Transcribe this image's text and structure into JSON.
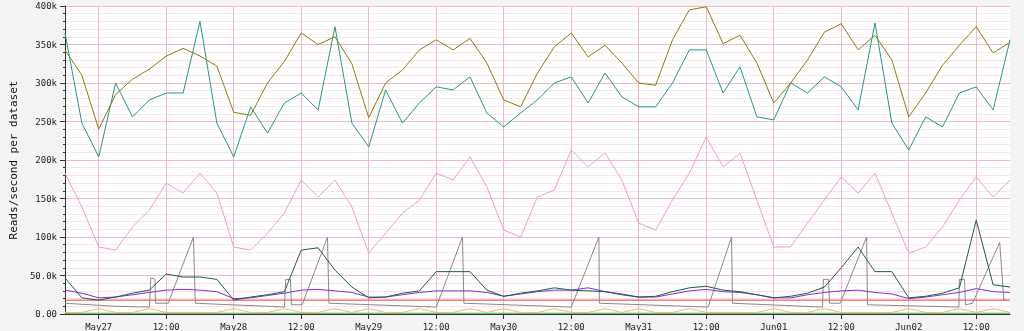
{
  "chart_data": {
    "type": "line",
    "ylabel": "Reads/second per dataset",
    "x": [
      "--05-26T18:00",
      "--05-26T21:00",
      "--05-27T00:00",
      "--05-27T03:00",
      "--05-27T06:00",
      "--05-27T09:00",
      "--05-27T12:00",
      "--05-27T15:00",
      "--05-27T18:00",
      "--05-27T21:00",
      "--05-28T00:00",
      "--05-28T03:00",
      "--05-28T06:00",
      "--05-28T09:00",
      "--05-28T12:00",
      "--05-28T15:00",
      "--05-28T18:00",
      "--05-28T21:00",
      "--05-29T00:00",
      "--05-29T03:00",
      "--05-29T06:00",
      "--05-29T09:00",
      "--05-29T12:00",
      "--05-29T15:00",
      "--05-29T18:00",
      "--05-29T21:00",
      "--05-30T00:00",
      "--05-30T03:00",
      "--05-30T06:00",
      "--05-30T09:00",
      "--05-30T12:00",
      "--05-30T15:00",
      "--05-30T18:00",
      "--05-30T21:00",
      "--05-31T00:00",
      "--05-31T03:00",
      "--05-31T06:00",
      "--05-31T09:00",
      "--05-31T12:00",
      "--05-31T15:00",
      "--05-31T18:00",
      "--05-31T21:00",
      "--06-01T00:00",
      "--06-01T03:00",
      "--06-01T06:00",
      "--06-01T09:00",
      "--06-01T12:00",
      "--06-01T15:00",
      "--06-01T18:00",
      "--06-01T21:00",
      "--06-02T00:00",
      "--06-02T03:00",
      "--06-02T06:00",
      "--06-02T09:00",
      "--06-02T12:00",
      "--06-02T15:00",
      "--06-02T18:00"
    ],
    "series": [
      {
        "color": "#8c7d0a",
        "values": [
          343000,
          310000,
          240000,
          285000,
          305000,
          318000,
          335000,
          345000,
          335000,
          322000,
          262000,
          258000,
          300000,
          328000,
          365000,
          350000,
          360000,
          325000,
          255000,
          300000,
          317000,
          343000,
          356000,
          343000,
          358000,
          326000,
          278000,
          269000,
          313000,
          347000,
          365000,
          334000,
          349000,
          326000,
          300000,
          297000,
          356000,
          395000,
          399000,
          351000,
          362000,
          326000,
          274000,
          300000,
          330000,
          366000,
          377000,
          343000,
          362000,
          330000,
          256000,
          287000,
          323000,
          349000,
          373000,
          339000,
          353000
        ]
      },
      {
        "color": "#1a9c8c",
        "values": [
          365000,
          248000,
          204000,
          300000,
          256000,
          278000,
          287000,
          287000,
          380000,
          248000,
          204000,
          269000,
          235000,
          274000,
          287000,
          265000,
          373000,
          248000,
          217000,
          291000,
          248000,
          274000,
          295000,
          291000,
          308000,
          261000,
          243000,
          261000,
          278000,
          300000,
          308000,
          274000,
          313000,
          282000,
          269000,
          269000,
          300000,
          343000,
          343000,
          287000,
          321000,
          256000,
          252000,
          300000,
          287000,
          308000,
          295000,
          265000,
          378000,
          248000,
          213000,
          256000,
          243000,
          287000,
          295000,
          265000,
          356000
        ]
      },
      {
        "color": "#f2a0b5",
        "values": [
          183000,
          139000,
          87000,
          83000,
          113000,
          135000,
          170000,
          157000,
          183000,
          157000,
          87000,
          83000,
          105000,
          131000,
          174000,
          152000,
          174000,
          139000,
          79000,
          105000,
          131000,
          148000,
          183000,
          174000,
          204000,
          165000,
          109000,
          100000,
          152000,
          161000,
          213000,
          191000,
          209000,
          174000,
          118000,
          109000,
          148000,
          183000,
          230000,
          191000,
          209000,
          148000,
          87000,
          87000,
          118000,
          148000,
          178000,
          157000,
          183000,
          131000,
          79000,
          87000,
          113000,
          148000,
          178000,
          152000,
          174000
        ]
      },
      {
        "color": "#1d5e3c",
        "values": [
          47000,
          21000,
          18000,
          22000,
          27000,
          31000,
          52000,
          48000,
          48000,
          45000,
          18000,
          22000,
          25000,
          29000,
          83000,
          86000,
          57000,
          35000,
          21000,
          22000,
          27000,
          30000,
          55000,
          55000,
          55000,
          31000,
          23000,
          27000,
          30000,
          34000,
          31000,
          30000,
          29000,
          25000,
          22000,
          23000,
          29000,
          34000,
          36000,
          31000,
          29000,
          25000,
          21000,
          23000,
          27000,
          35000,
          60000,
          87000,
          55000,
          55000,
          21000,
          23000,
          27000,
          34000,
          122000,
          38000,
          35000
        ]
      },
      {
        "color": "#7a2fe6",
        "values": [
          31000,
          27000,
          21000,
          22000,
          25000,
          28000,
          31000,
          32000,
          31000,
          29000,
          20000,
          21000,
          24000,
          27000,
          31000,
          32000,
          30000,
          28000,
          22000,
          22000,
          25000,
          28000,
          30000,
          30000,
          30000,
          28000,
          23000,
          26000,
          29000,
          31000,
          31000,
          34000,
          29000,
          26000,
          22000,
          22000,
          26000,
          30000,
          32000,
          29000,
          28000,
          25000,
          21000,
          21000,
          25000,
          28000,
          30000,
          31000,
          28000,
          26000,
          20000,
          22000,
          25000,
          28000,
          33000,
          29000,
          28000
        ]
      },
      {
        "color": "#f5b56b",
        "values": [
          2000,
          2000,
          7000,
          2000,
          2000,
          7000,
          2000,
          2000,
          2000,
          2000,
          7000,
          2000,
          2000,
          7000,
          2000,
          2000,
          7000,
          2000,
          7000,
          2000,
          2000,
          7000,
          2000,
          2000,
          7000,
          2000,
          7000,
          2000,
          2000,
          7000,
          2000,
          2000,
          7000,
          2000,
          7000,
          2000,
          2000,
          7000,
          2000,
          2000,
          2000,
          2000,
          7000,
          2000,
          2000,
          7000,
          2000,
          2000,
          2000,
          2000,
          7000,
          2000,
          2000,
          7000,
          2000,
          7000,
          2000
        ]
      },
      {
        "color": "#8a8a8a",
        "x": [
          "--05-26T18:00",
          "--05-27T03:00",
          "--05-27T09:00",
          "--05-27T09:15",
          "--05-27T10:00",
          "--05-27T10:05",
          "--05-27T12:20",
          "--05-27T16:50",
          "--05-27T17:10",
          "--05-28T09:00",
          "--05-28T09:15",
          "--05-28T10:05",
          "--05-28T10:15",
          "--05-28T12:10",
          "--05-28T16:40",
          "--05-28T16:55",
          "--05-29T12:00",
          "--05-29T16:40",
          "--05-29T16:55",
          "--05-30T12:00",
          "--05-30T16:55",
          "--05-30T17:00",
          "--05-31T12:20",
          "--05-31T16:30",
          "--05-31T16:40",
          "--06-01T08:40",
          "--06-01T08:50",
          "--06-01T09:45",
          "--06-01T09:55",
          "--06-01T11:50",
          "--06-01T16:30",
          "--06-01T16:40",
          "--06-02T08:55",
          "--06-02T09:00",
          "--06-02T09:55",
          "--06-02T10:05",
          "--06-02T11:20",
          "--06-02T16:10",
          "--06-02T16:55",
          "--06-02T17:25"
        ],
        "values": [
          14000,
          10000,
          9000,
          47000,
          45000,
          14000,
          14000,
          100000,
          14000,
          9000,
          45000,
          45000,
          12000,
          12000,
          100000,
          14000,
          9000,
          100000,
          14000,
          9000,
          100000,
          14000,
          9000,
          100000,
          14000,
          9000,
          45000,
          45000,
          14000,
          14000,
          100000,
          12000,
          9000,
          45000,
          45000,
          12000,
          14000,
          93000,
          18000,
          18000
        ]
      },
      {
        "color": "#e83a3a",
        "x": [
          "--05-26T18:00",
          "--06-02T18:00"
        ],
        "values": [
          18000,
          18000
        ]
      },
      {
        "color": "#2db34a",
        "x": [
          "--05-26T18:00",
          "--06-02T18:00"
        ],
        "values": [
          1000,
          1000
        ]
      }
    ],
    "xlim": [
      "--05-26T18:00",
      "--06-02T18:00"
    ],
    "xticks": [
      {
        "value": "--05-27",
        "label": "May27"
      },
      {
        "value": "--05-27T12:00",
        "label": "12:00"
      },
      {
        "value": "--05-28",
        "label": "May28"
      },
      {
        "value": "--05-28T12:00",
        "label": "12:00"
      },
      {
        "value": "--05-29",
        "label": "May29"
      },
      {
        "value": "--05-29T12:00",
        "label": "12:00"
      },
      {
        "value": "--05-30",
        "label": "May30"
      },
      {
        "value": "--05-30T12:00",
        "label": "12:00"
      },
      {
        "value": "--05-31",
        "label": "May31"
      },
      {
        "value": "--05-31T12:00",
        "label": "12:00"
      },
      {
        "value": "--06-01",
        "label": "Jun01"
      },
      {
        "value": "--06-01T12:00",
        "label": "12:00"
      },
      {
        "value": "--06-02",
        "label": "Jun02"
      },
      {
        "value": "--06-02T12:00",
        "label": "12:00"
      }
    ],
    "ylim": [
      0,
      400000
    ],
    "yticks": [
      {
        "value": 0,
        "label": "0.00"
      },
      {
        "value": 50000,
        "label": "50.0k"
      },
      {
        "value": 100000,
        "label": "100k"
      },
      {
        "value": 150000,
        "label": "150k"
      },
      {
        "value": 200000,
        "label": "200k"
      },
      {
        "value": 250000,
        "label": "250k"
      },
      {
        "value": 300000,
        "label": "300k"
      },
      {
        "value": 350000,
        "label": "350k"
      },
      {
        "value": 400000,
        "label": "400k"
      }
    ],
    "grid": true
  }
}
